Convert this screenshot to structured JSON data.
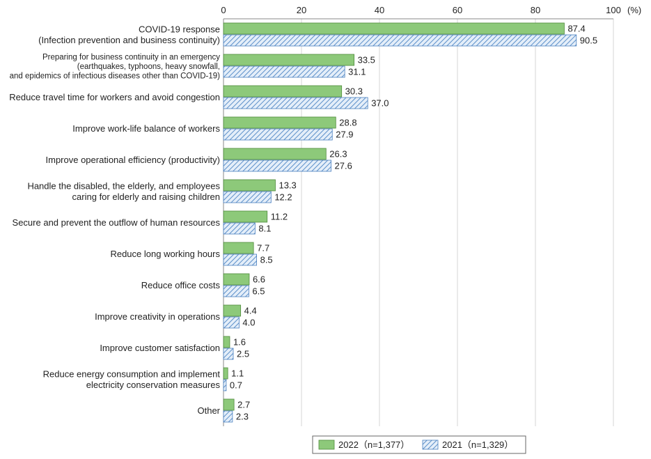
{
  "chart_data": {
    "type": "bar",
    "orientation": "horizontal",
    "title": "",
    "xlabel": "",
    "ylabel": "",
    "unit": "(%)",
    "xlim": [
      0,
      100
    ],
    "ticks": [
      0,
      20,
      40,
      60,
      80,
      100
    ],
    "grid": true,
    "legend_position": "bottom-right",
    "categories": [
      [
        "COVID-19 response",
        "(Infection prevention and business continuity)"
      ],
      [
        "Preparing for business continuity in an emergency",
        "(earthquakes, typhoons, heavy snowfall,",
        "and epidemics of infectious diseases other than COVID-19)"
      ],
      [
        "Reduce travel time for workers and avoid congestion"
      ],
      [
        "Improve work-life balance of workers"
      ],
      [
        "Improve operational efficiency (productivity)"
      ],
      [
        "Handle the disabled, the elderly, and employees",
        "caring for elderly and raising children"
      ],
      [
        "Secure and prevent the outflow of human resources"
      ],
      [
        "Reduce long working hours"
      ],
      [
        "Reduce office costs"
      ],
      [
        "Improve creativity in operations"
      ],
      [
        "Improve customer satisfaction"
      ],
      [
        "Reduce energy consumption and implement",
        "electricity conservation measures"
      ],
      [
        "Other"
      ]
    ],
    "series": [
      {
        "name": "2022（n=1,377）",
        "color": "#8dc97a",
        "pattern": "solid",
        "values": [
          87.4,
          33.5,
          30.3,
          28.8,
          26.3,
          13.3,
          11.2,
          7.7,
          6.6,
          4.4,
          1.6,
          1.1,
          2.7
        ],
        "labels": [
          "87.4",
          "33.5",
          "30.3",
          "28.8",
          "26.3",
          "13.3",
          "11.2",
          "7.7",
          "6.6",
          "4.4",
          "1.6",
          "1.1",
          "2.7"
        ]
      },
      {
        "name": "2021（n=1,329）",
        "color": "#5b8fc9",
        "pattern": "diagonal-hatch",
        "values": [
          90.5,
          31.1,
          37.0,
          27.9,
          27.6,
          12.2,
          8.1,
          8.5,
          6.5,
          4.0,
          2.5,
          0.7,
          2.3
        ],
        "labels": [
          "90.5",
          "31.1",
          "37.0",
          "27.9",
          "27.6",
          "12.2",
          "8.1",
          "8.5",
          "6.5",
          "4.0",
          "2.5",
          "0.7",
          "2.3"
        ]
      }
    ]
  }
}
